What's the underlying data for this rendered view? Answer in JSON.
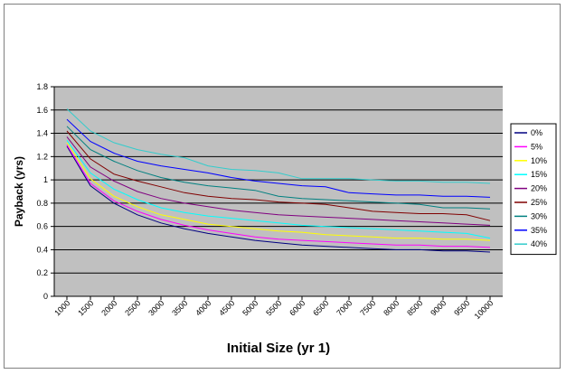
{
  "chart_data": {
    "type": "line",
    "title": "",
    "xlabel": "Initial Size (yr 1)",
    "ylabel": "Payback (yrs)",
    "ylim": [
      0,
      1.8
    ],
    "yticks": [
      "0",
      "0.2",
      "0.4",
      "0.6",
      "0.8",
      "1",
      "1.2",
      "1.4",
      "1.6",
      "1.8"
    ],
    "x_tick_labels": [
      "1000",
      "1500",
      "2000",
      "2500",
      "3000",
      "3500",
      "4000",
      "4500",
      "5000",
      "5500",
      "6000",
      "6500",
      "7000",
      "7500",
      "8000",
      "8500",
      "9000",
      "9500",
      "10000"
    ],
    "x": [
      1000,
      1500,
      2000,
      2500,
      3000,
      3500,
      4000,
      4500,
      5000,
      5500,
      6000,
      6500,
      7000,
      7500,
      8000,
      8500,
      9000,
      9500,
      10000
    ],
    "grid": true,
    "legend_position": "right",
    "plot_background": "#c0c0c0",
    "series": [
      {
        "name": "0%",
        "color": "#000080",
        "values": [
          1.29,
          0.95,
          0.8,
          0.7,
          0.63,
          0.58,
          0.54,
          0.51,
          0.48,
          0.46,
          0.44,
          0.43,
          0.42,
          0.41,
          0.4,
          0.4,
          0.39,
          0.39,
          0.38
        ]
      },
      {
        "name": "5%",
        "color": "#ff00ff",
        "values": [
          1.3,
          0.97,
          0.82,
          0.73,
          0.66,
          0.61,
          0.57,
          0.54,
          0.51,
          0.49,
          0.48,
          0.47,
          0.46,
          0.45,
          0.44,
          0.44,
          0.43,
          0.43,
          0.42
        ]
      },
      {
        "name": "10%",
        "color": "#ffff00",
        "values": [
          1.32,
          1.01,
          0.86,
          0.77,
          0.7,
          0.66,
          0.62,
          0.6,
          0.58,
          0.56,
          0.55,
          0.53,
          0.52,
          0.51,
          0.5,
          0.5,
          0.49,
          0.49,
          0.48
        ]
      },
      {
        "name": "15%",
        "color": "#00ffff",
        "values": [
          1.34,
          1.06,
          0.92,
          0.83,
          0.76,
          0.72,
          0.69,
          0.67,
          0.65,
          0.63,
          0.61,
          0.6,
          0.59,
          0.58,
          0.57,
          0.56,
          0.55,
          0.54,
          0.5
        ]
      },
      {
        "name": "20%",
        "color": "#800080",
        "values": [
          1.37,
          1.11,
          0.99,
          0.9,
          0.84,
          0.8,
          0.77,
          0.74,
          0.72,
          0.7,
          0.69,
          0.68,
          0.67,
          0.66,
          0.65,
          0.64,
          0.63,
          0.62,
          0.61
        ]
      },
      {
        "name": "25%",
        "color": "#800000",
        "values": [
          1.42,
          1.18,
          1.05,
          0.99,
          0.94,
          0.89,
          0.86,
          0.84,
          0.83,
          0.81,
          0.8,
          0.79,
          0.76,
          0.73,
          0.72,
          0.71,
          0.71,
          0.7,
          0.65
        ]
      },
      {
        "name": "30%",
        "color": "#008080",
        "values": [
          1.46,
          1.26,
          1.16,
          1.08,
          1.02,
          0.98,
          0.95,
          0.93,
          0.91,
          0.86,
          0.84,
          0.83,
          0.82,
          0.81,
          0.8,
          0.79,
          0.76,
          0.76,
          0.75
        ]
      },
      {
        "name": "35%",
        "color": "#0000ff",
        "values": [
          1.52,
          1.33,
          1.23,
          1.16,
          1.12,
          1.09,
          1.06,
          1.02,
          0.99,
          0.97,
          0.95,
          0.94,
          0.89,
          0.88,
          0.87,
          0.87,
          0.86,
          0.86,
          0.85
        ]
      },
      {
        "name": "40%",
        "color": "#33cccc",
        "values": [
          1.61,
          1.42,
          1.32,
          1.26,
          1.22,
          1.19,
          1.12,
          1.09,
          1.08,
          1.06,
          1.01,
          1.01,
          1.01,
          1.0,
          0.99,
          0.99,
          0.98,
          0.98,
          0.97
        ]
      }
    ]
  }
}
